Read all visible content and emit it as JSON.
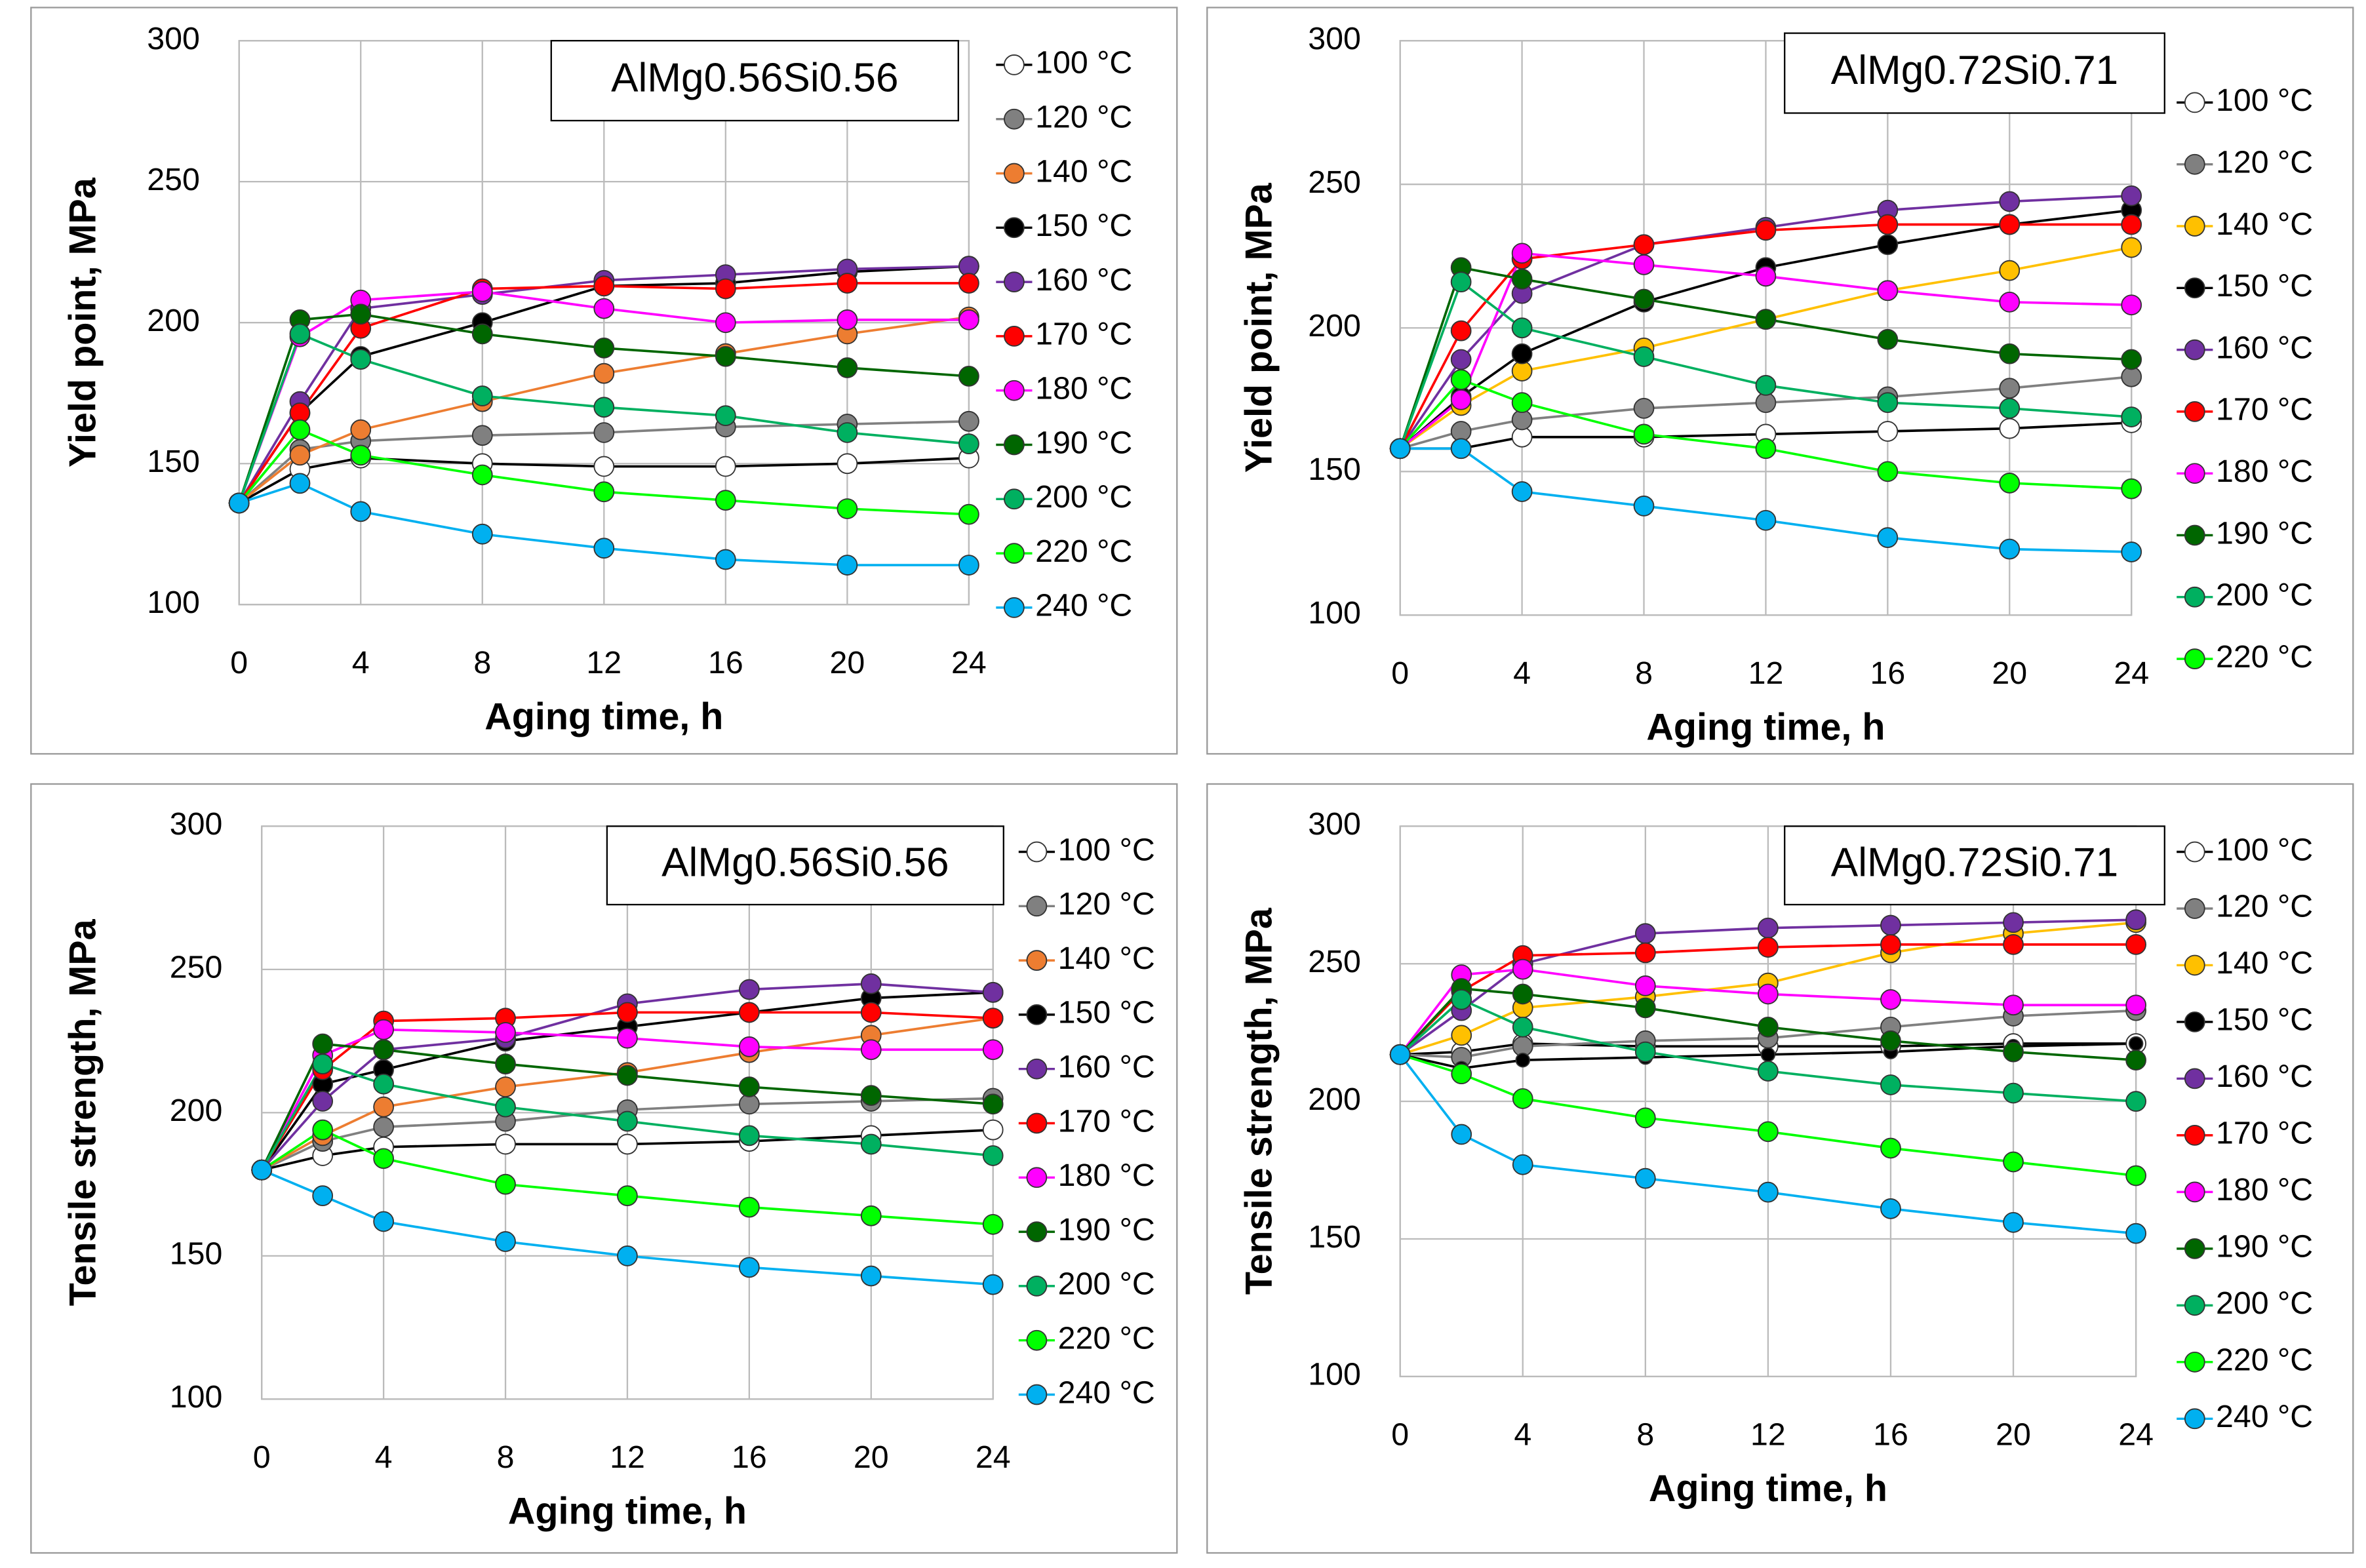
{
  "chart_data": [
    {
      "type": "line",
      "title": "AlMg0.56Si0.56",
      "x_label": "Aging time, h",
      "y_label": "Yield point, MPa",
      "x": [
        0,
        2,
        4,
        8,
        12,
        16,
        20,
        24
      ],
      "xlim": [
        0,
        24
      ],
      "xticks": [
        0,
        4,
        8,
        12,
        16,
        20,
        24
      ],
      "ylim": [
        100,
        300
      ],
      "yticks": [
        100,
        150,
        200,
        250,
        300
      ],
      "grid": true,
      "series": [
        {
          "name": "100 °C",
          "color": "#ffffff",
          "values": [
            136,
            148,
            152,
            150,
            149,
            149,
            150,
            152
          ]
        },
        {
          "name": "120 °C",
          "color": "#808080",
          "values": [
            136,
            155,
            158,
            160,
            161,
            163,
            164,
            165
          ]
        },
        {
          "name": "140 °C",
          "color": "#ed7d31",
          "values": [
            136,
            153,
            162,
            172,
            182,
            189,
            196,
            202
          ]
        },
        {
          "name": "150 °C",
          "color": "#000000",
          "values": [
            136,
            168,
            188,
            200,
            213,
            214,
            218,
            220
          ]
        },
        {
          "name": "160 °C",
          "color": "#7030a0",
          "values": [
            136,
            172,
            205,
            210,
            215,
            217,
            219,
            220
          ]
        },
        {
          "name": "170 °C",
          "color": "#ff0000",
          "values": [
            136,
            168,
            198,
            212,
            213,
            212,
            214,
            214
          ]
        },
        {
          "name": "180 °C",
          "color": "#ff00ff",
          "values": [
            136,
            195,
            208,
            211,
            205,
            200,
            201,
            201
          ]
        },
        {
          "name": "190 °C",
          "color": "#006600",
          "values": [
            136,
            201,
            203,
            196,
            191,
            188,
            184,
            181
          ]
        },
        {
          "name": "200 °C",
          "color": "#00b060",
          "values": [
            136,
            196,
            187,
            174,
            170,
            167,
            161,
            157
          ]
        },
        {
          "name": "220 °C",
          "color": "#00ff00",
          "values": [
            136,
            162,
            153,
            146,
            140,
            137,
            134,
            132
          ]
        },
        {
          "name": "240 °C",
          "color": "#00b0f0",
          "values": [
            136,
            143,
            133,
            125,
            120,
            116,
            114,
            114
          ]
        }
      ]
    },
    {
      "type": "line",
      "title": "AlMg0.72Si0.71",
      "x_label": "Aging time, h",
      "y_label": "Yield point, MPa",
      "x": [
        0,
        2,
        4,
        8,
        12,
        16,
        20,
        24
      ],
      "xlim": [
        0,
        24
      ],
      "xticks": [
        0,
        4,
        8,
        12,
        16,
        20,
        24
      ],
      "ylim": [
        100,
        300
      ],
      "yticks": [
        100,
        150,
        200,
        250,
        300
      ],
      "grid": true,
      "series": [
        {
          "name": "100 °C",
          "color": "#ffffff",
          "values": [
            158,
            158,
            162,
            162,
            163,
            164,
            165,
            167
          ]
        },
        {
          "name": "120 °C",
          "color": "#808080",
          "values": [
            158,
            164,
            168,
            172,
            174,
            176,
            179,
            183
          ]
        },
        {
          "name": "140 °C",
          "color": "#ffc000",
          "values": [
            158,
            173,
            185,
            193,
            203,
            213,
            220,
            228
          ]
        },
        {
          "name": "150 °C",
          "color": "#000000",
          "values": [
            158,
            176,
            191,
            209,
            221,
            229,
            236,
            241
          ]
        },
        {
          "name": "160 °C",
          "color": "#7030a0",
          "values": [
            158,
            189,
            212,
            229,
            235,
            241,
            244,
            246
          ]
        },
        {
          "name": "170 °C",
          "color": "#ff0000",
          "values": [
            158,
            199,
            224,
            229,
            234,
            236,
            236,
            236
          ]
        },
        {
          "name": "180 °C",
          "color": "#ff00ff",
          "values": [
            158,
            175,
            226,
            222,
            218,
            213,
            209,
            208
          ]
        },
        {
          "name": "190 °C",
          "color": "#006600",
          "values": [
            158,
            221,
            217,
            210,
            203,
            196,
            191,
            189
          ]
        },
        {
          "name": "200 °C",
          "color": "#00b060",
          "values": [
            158,
            216,
            200,
            190,
            180,
            174,
            172,
            169
          ]
        },
        {
          "name": "220 °C",
          "color": "#00ff00",
          "values": [
            158,
            182,
            174,
            163,
            158,
            150,
            146,
            144
          ]
        },
        {
          "color": "#00b0f0",
          "values": [
            158,
            158,
            143,
            138,
            133,
            127,
            123,
            122
          ]
        }
      ]
    },
    {
      "type": "line",
      "title": "AlMg0.56Si0.56",
      "x_label": "Aging time, h",
      "y_label": "Tensile strength, MPa",
      "x": [
        0,
        2,
        4,
        8,
        12,
        16,
        20,
        24
      ],
      "xlim": [
        0,
        24
      ],
      "xticks": [
        0,
        4,
        8,
        12,
        16,
        20,
        24
      ],
      "ylim": [
        100,
        300
      ],
      "yticks": [
        100,
        150,
        200,
        250,
        300
      ],
      "grid": true,
      "series": [
        {
          "name": "100 °C",
          "color": "#ffffff",
          "values": [
            180,
            185,
            188,
            189,
            189,
            190,
            192,
            194
          ]
        },
        {
          "name": "120 °C",
          "color": "#808080",
          "values": [
            180,
            190,
            195,
            197,
            201,
            203,
            204,
            205
          ]
        },
        {
          "name": "140 °C",
          "color": "#ed7d31",
          "values": [
            180,
            192,
            202,
            209,
            214,
            221,
            227,
            233
          ]
        },
        {
          "name": "150 °C",
          "color": "#000000",
          "values": [
            180,
            210,
            215,
            225,
            230,
            235,
            240,
            242
          ]
        },
        {
          "name": "160 °C",
          "color": "#7030a0",
          "values": [
            180,
            204,
            222,
            226,
            238,
            243,
            245,
            242
          ]
        },
        {
          "name": "170 °C",
          "color": "#ff0000",
          "values": [
            180,
            215,
            232,
            233,
            235,
            235,
            235,
            233
          ]
        },
        {
          "name": "180 °C",
          "color": "#ff00ff",
          "values": [
            180,
            220,
            229,
            228,
            226,
            223,
            222,
            222
          ]
        },
        {
          "name": "190 °C",
          "color": "#006600",
          "values": [
            180,
            224,
            222,
            217,
            213,
            209,
            206,
            203
          ]
        },
        {
          "name": "200 °C",
          "color": "#00b060",
          "values": [
            180,
            217,
            210,
            202,
            197,
            192,
            189,
            185
          ]
        },
        {
          "name": "220 °C",
          "color": "#00ff00",
          "values": [
            180,
            194,
            184,
            175,
            171,
            167,
            164,
            161
          ]
        },
        {
          "name": "240 °C",
          "color": "#00b0f0",
          "values": [
            180,
            171,
            162,
            155,
            150,
            146,
            143,
            140
          ]
        }
      ]
    },
    {
      "type": "line",
      "title": "AlMg0.72Si0.71",
      "x_label": "Aging time, h",
      "y_label": "Tensile strength, MPa",
      "x": [
        0,
        2,
        4,
        8,
        12,
        16,
        20,
        24
      ],
      "xlim": [
        0,
        24
      ],
      "xticks": [
        0,
        4,
        8,
        12,
        16,
        20,
        24
      ],
      "ylim": [
        100,
        300
      ],
      "yticks": [
        100,
        150,
        200,
        250,
        300
      ],
      "grid": true,
      "series": [
        {
          "name": "100 °C",
          "color": "#ffffff",
          "values": [
            217,
            218,
            221,
            220,
            220,
            220,
            221,
            221
          ]
        },
        {
          "name": "120 °C",
          "color": "#808080",
          "values": [
            217,
            216,
            220,
            222,
            223,
            227,
            231,
            233
          ]
        },
        {
          "name": "140 °C",
          "color": "#ffc000",
          "values": [
            217,
            224,
            234,
            238,
            243,
            254,
            261,
            265
          ]
        },
        {
          "name": "150 °C",
          "color": "#000000",
          "values": [
            217,
            212,
            215,
            216,
            217,
            218,
            220,
            221
          ]
        },
        {
          "name": "160 °C",
          "color": "#7030a0",
          "values": [
            217,
            233,
            250,
            261,
            263,
            264,
            265,
            266
          ]
        },
        {
          "name": "170 °C",
          "color": "#ff0000",
          "values": [
            217,
            240,
            253,
            254,
            256,
            257,
            257,
            257
          ]
        },
        {
          "name": "180 °C",
          "color": "#ff00ff",
          "values": [
            217,
            246,
            248,
            242,
            239,
            237,
            235,
            235
          ]
        },
        {
          "name": "190 °C",
          "color": "#006600",
          "values": [
            217,
            241,
            239,
            234,
            227,
            222,
            218,
            215
          ]
        },
        {
          "name": "200 °C",
          "color": "#00b060",
          "values": [
            217,
            237,
            227,
            218,
            211,
            206,
            203,
            200
          ]
        },
        {
          "name": "220 °C",
          "color": "#00ff00",
          "values": [
            217,
            210,
            201,
            194,
            189,
            183,
            178,
            173
          ]
        },
        {
          "name": "240 °C",
          "color": "#00b0f0",
          "values": [
            217,
            188,
            177,
            172,
            167,
            161,
            156,
            152
          ]
        }
      ]
    }
  ]
}
